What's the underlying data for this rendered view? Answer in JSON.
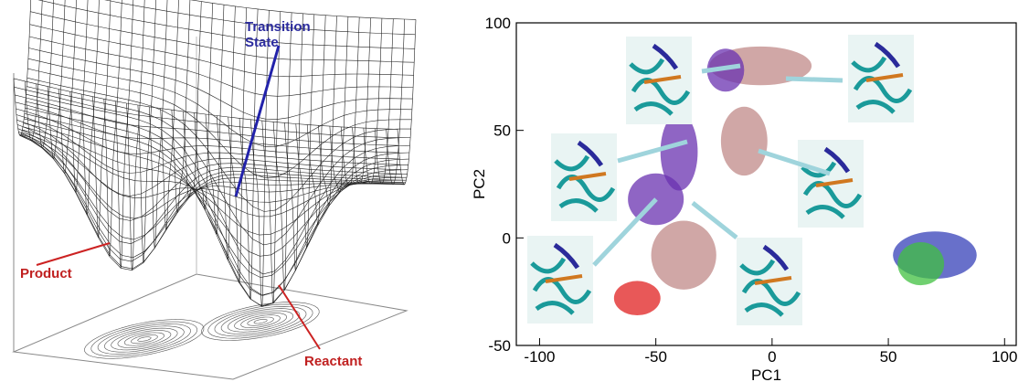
{
  "left_panel": {
    "transition_state": [
      "Transition",
      "State"
    ],
    "product": "Product",
    "reactant": "Reactant"
  },
  "chart_data": {
    "type": "scatter",
    "x_label": "PC1",
    "y_label": "PC2",
    "xlim": [
      -110,
      105
    ],
    "ylim": [
      -50,
      100
    ],
    "xticks": [
      -100,
      -50,
      0,
      50,
      100
    ],
    "yticks": [
      -50,
      0,
      50,
      100
    ],
    "clouds": [
      {
        "color": "#c08a88",
        "x": -5,
        "y": 80,
        "rx": 22,
        "ry": 9
      },
      {
        "color": "#c08a88",
        "x": -12,
        "y": 45,
        "rx": 10,
        "ry": 16
      },
      {
        "color": "#c08a88",
        "x": -38,
        "y": -8,
        "rx": 14,
        "ry": 16
      },
      {
        "color": "#6a32b0",
        "x": -20,
        "y": 78,
        "rx": 8,
        "ry": 10
      },
      {
        "color": "#6a32b0",
        "x": -40,
        "y": 40,
        "rx": 8,
        "ry": 18
      },
      {
        "color": "#6a32b0",
        "x": -50,
        "y": 18,
        "rx": 12,
        "ry": 12
      },
      {
        "color": "#e02020",
        "x": -58,
        "y": -28,
        "rx": 10,
        "ry": 8
      },
      {
        "color": "#3540b8",
        "x": 70,
        "y": -8,
        "rx": 18,
        "ry": 11
      },
      {
        "color": "#40c040",
        "x": 64,
        "y": -12,
        "rx": 10,
        "ry": 10
      }
    ]
  }
}
